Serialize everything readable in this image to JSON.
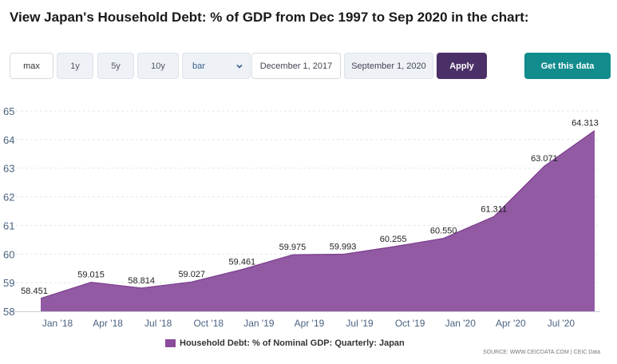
{
  "title": "View Japan's Household Debt: % of GDP from Dec 1997 to Sep 2020 in the chart:",
  "toolbar": {
    "range_buttons": [
      "max",
      "1y",
      "5y",
      "10y"
    ],
    "chart_type_value": "bar",
    "start_date": "December 1, 2017",
    "end_date": "September 1, 2020",
    "apply_label": "Apply",
    "get_data_label": "Get this data"
  },
  "colors": {
    "area": "#8a4c9c",
    "apply": "#4b2f67",
    "get_data": "#138c8d"
  },
  "legend_label": "Household Debt: % of Nominal GDP: Quarterly: Japan",
  "source": "SOURCE: WWW.CEICDATA.COM | CEIC Data",
  "chart_data": {
    "type": "area",
    "title": "",
    "xlabel": "",
    "ylabel": "",
    "ylim": [
      58,
      65
    ],
    "yticks": [
      58,
      59,
      60,
      61,
      62,
      63,
      64,
      65
    ],
    "grid": true,
    "legend_placement": "bottom",
    "x": [
      "Dec '17",
      "Mar '18",
      "Jun '18",
      "Sep '18",
      "Dec '18",
      "Mar '19",
      "Jun '19",
      "Sep '19",
      "Dec '19",
      "Mar '20",
      "Jun '20",
      "Sep '20"
    ],
    "xtick_labels": [
      "Jan '18",
      "Apr '18",
      "Jul '18",
      "Oct '18",
      "Jan '19",
      "Apr '19",
      "Jul '19",
      "Oct '19",
      "Jan '20",
      "Apr '20",
      "Jul '20"
    ],
    "series": [
      {
        "name": "Household Debt: % of Nominal GDP: Quarterly: Japan",
        "values": [
          58.451,
          59.015,
          58.814,
          59.027,
          59.461,
          59.975,
          59.993,
          60.255,
          60.55,
          61.311,
          63.071,
          64.313
        ],
        "labels": [
          "58.451",
          "59.015",
          "58.814",
          "59.027",
          "59.461",
          "59.975",
          "59.993",
          "60.255",
          "60.550",
          "61.311",
          "63.071",
          "64.313"
        ]
      }
    ]
  }
}
